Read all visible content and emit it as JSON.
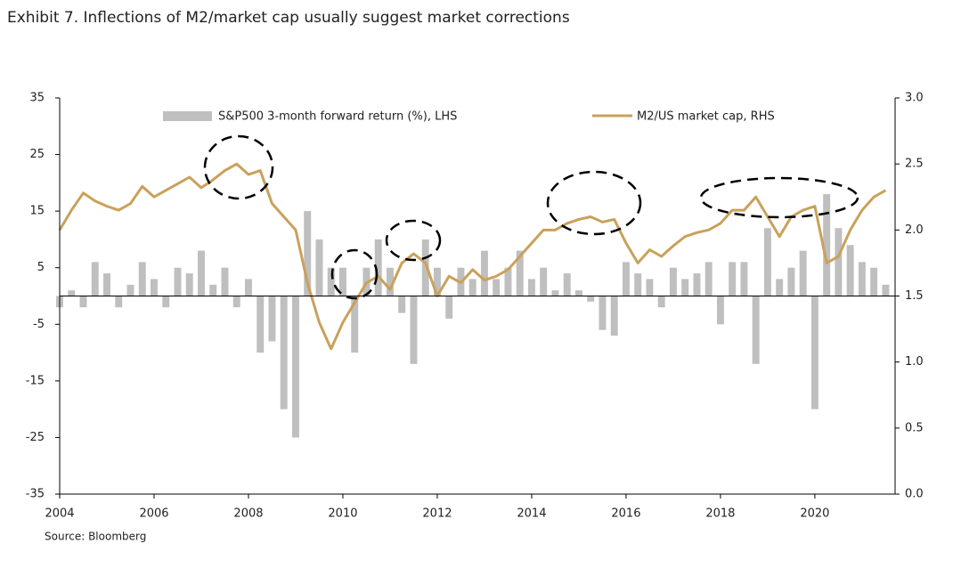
{
  "chart_data": {
    "type": "combo",
    "title": "Exhibit 7. Inflections of M2/market cap usually suggest market corrections",
    "source": "Source: Bloomberg",
    "x": [
      2004,
      2004.25,
      2004.5,
      2004.75,
      2005,
      2005.25,
      2005.5,
      2005.75,
      2006,
      2006.25,
      2006.5,
      2006.75,
      2007,
      2007.25,
      2007.5,
      2007.75,
      2008,
      2008.25,
      2008.5,
      2008.75,
      2009,
      2009.25,
      2009.5,
      2009.75,
      2010,
      2010.25,
      2010.5,
      2010.75,
      2011,
      2011.25,
      2011.5,
      2011.75,
      2012,
      2012.25,
      2012.5,
      2012.75,
      2013,
      2013.25,
      2013.5,
      2013.75,
      2014,
      2014.25,
      2014.5,
      2014.75,
      2015,
      2015.25,
      2015.5,
      2015.75,
      2016,
      2016.25,
      2016.5,
      2016.75,
      2017,
      2017.25,
      2017.5,
      2017.75,
      2018,
      2018.25,
      2018.5,
      2018.75,
      2019,
      2019.25,
      2019.5,
      2019.75,
      2020,
      2020.25,
      2020.5,
      2020.75,
      2021,
      2021.25,
      2021.5
    ],
    "series": [
      {
        "name": "S&P500 3-month forward return (%), LHS",
        "type": "bar",
        "axis": "y",
        "color": "#bfbfbf",
        "values": [
          -2,
          1,
          -2,
          6,
          4,
          -2,
          2,
          6,
          3,
          -2,
          5,
          4,
          8,
          2,
          5,
          -2,
          3,
          -10,
          -8,
          -20,
          -25,
          15,
          10,
          5,
          5,
          -10,
          5,
          10,
          5,
          -3,
          -12,
          10,
          5,
          -4,
          5,
          3,
          8,
          3,
          5,
          8,
          3,
          5,
          1,
          4,
          1,
          -1,
          -6,
          -7,
          6,
          4,
          3,
          -2,
          5,
          3,
          4,
          6,
          -5,
          6,
          6,
          -12,
          12,
          3,
          5,
          8,
          -20,
          18,
          12,
          9,
          6,
          5,
          2
        ]
      },
      {
        "name": "M2/US market cap, RHS",
        "type": "line",
        "axis": "y2",
        "color": "#c9a15a",
        "values": [
          2.0,
          2.15,
          2.28,
          2.22,
          2.18,
          2.15,
          2.2,
          2.33,
          2.25,
          2.3,
          2.35,
          2.4,
          2.32,
          2.38,
          2.45,
          2.5,
          2.42,
          2.45,
          2.2,
          2.1,
          2.0,
          1.6,
          1.3,
          1.1,
          1.3,
          1.45,
          1.6,
          1.65,
          1.55,
          1.75,
          1.82,
          1.75,
          1.5,
          1.65,
          1.6,
          1.7,
          1.62,
          1.65,
          1.7,
          1.8,
          1.9,
          2.0,
          2.0,
          2.05,
          2.08,
          2.1,
          2.06,
          2.08,
          1.9,
          1.75,
          1.85,
          1.8,
          1.88,
          1.95,
          1.98,
          2.0,
          2.05,
          2.15,
          2.15,
          2.25,
          2.1,
          1.95,
          2.1,
          2.15,
          2.18,
          1.75,
          1.8,
          2.0,
          2.15,
          2.25,
          2.3
        ]
      }
    ],
    "xlim": [
      2004,
      2021.7
    ],
    "xticks": [
      2004,
      2006,
      2008,
      2010,
      2012,
      2014,
      2016,
      2018,
      2020
    ],
    "ylim": [
      -35,
      35
    ],
    "yticks": [
      35,
      25,
      15,
      5,
      -5,
      -15,
      -25,
      -35
    ],
    "y2lim": [
      0,
      3
    ],
    "y2ticks": [
      {
        "value": 3,
        "label": "3.0"
      },
      2.5,
      {
        "value": 2,
        "label": "2.0"
      },
      1.5,
      {
        "value": 1,
        "label": "1.0"
      },
      0.5,
      {
        "value": 0,
        "label": "0.0"
      }
    ],
    "grid": false,
    "legend": "top"
  }
}
